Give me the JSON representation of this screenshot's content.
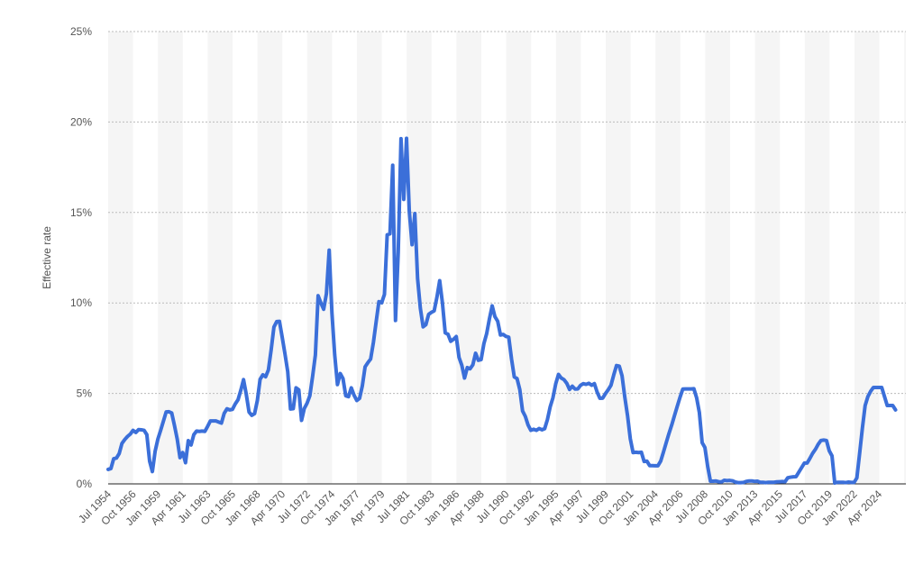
{
  "chart_data": {
    "type": "line",
    "y_axis_label": "Effective rate",
    "categories": [
      "Jul 1954",
      null,
      null,
      null,
      null,
      null,
      null,
      null,
      null,
      "Oct 1956",
      null,
      null,
      null,
      null,
      null,
      null,
      null,
      null,
      "Jan 1959",
      null,
      null,
      null,
      null,
      null,
      null,
      null,
      null,
      "Apr 1961",
      null,
      null,
      null,
      null,
      null,
      null,
      null,
      null,
      "Jul 1963",
      null,
      null,
      null,
      null,
      null,
      null,
      null,
      null,
      "Oct 1965",
      null,
      null,
      null,
      null,
      null,
      null,
      null,
      null,
      "Jan 1968",
      null,
      null,
      null,
      null,
      null,
      null,
      null,
      null,
      "Apr 1970",
      null,
      null,
      null,
      null,
      null,
      null,
      null,
      null,
      "Jul 1972",
      null,
      null,
      null,
      null,
      null,
      null,
      null,
      null,
      "Oct 1974",
      null,
      null,
      null,
      null,
      null,
      null,
      null,
      null,
      "Jan 1977",
      null,
      null,
      null,
      null,
      null,
      null,
      null,
      null,
      "Apr 1979",
      null,
      null,
      null,
      null,
      null,
      null,
      null,
      null,
      "Jul 1981",
      null,
      null,
      null,
      null,
      null,
      null,
      null,
      null,
      "Oct 1983",
      null,
      null,
      null,
      null,
      null,
      null,
      null,
      null,
      "Jan 1986",
      null,
      null,
      null,
      null,
      null,
      null,
      null,
      null,
      "Apr 1988",
      null,
      null,
      null,
      null,
      null,
      null,
      null,
      null,
      "Jul 1990",
      null,
      null,
      null,
      null,
      null,
      null,
      null,
      null,
      "Oct 1992",
      null,
      null,
      null,
      null,
      null,
      null,
      null,
      null,
      "Jan 1995",
      null,
      null,
      null,
      null,
      null,
      null,
      null,
      null,
      "Apr 1997",
      null,
      null,
      null,
      null,
      null,
      null,
      null,
      null,
      "Jul 1999",
      null,
      null,
      null,
      null,
      null,
      null,
      null,
      null,
      "Oct 2001",
      null,
      null,
      null,
      null,
      null,
      null,
      null,
      null,
      "Jan 2004",
      null,
      null,
      null,
      null,
      null,
      null,
      null,
      null,
      "Apr 2006",
      null,
      null,
      null,
      null,
      null,
      null,
      null,
      null,
      "Jul 2008",
      null,
      null,
      null,
      null,
      null,
      null,
      null,
      null,
      "Oct 2010",
      null,
      null,
      null,
      null,
      null,
      null,
      null,
      null,
      "Jan 2013",
      null,
      null,
      null,
      null,
      null,
      null,
      null,
      null,
      "Apr 2015",
      null,
      null,
      null,
      null,
      null,
      null,
      null,
      null,
      "Jul 2017",
      null,
      null,
      null,
      null,
      null,
      null,
      null,
      null,
      "Oct 2019",
      null,
      null,
      null,
      null,
      null,
      null,
      null,
      null,
      "Jan 2022",
      null,
      null,
      null,
      null,
      null,
      null,
      null,
      null,
      "Apr 2024",
      null,
      null,
      null,
      null,
      null,
      null
    ],
    "series": [
      {
        "color": "#3b6fd9",
        "values": [
          0.8,
          0.85,
          1.39,
          1.43,
          1.68,
          2.24,
          2.45,
          2.62,
          2.75,
          2.96,
          2.84,
          3.0,
          2.99,
          2.96,
          2.72,
          1.26,
          0.68,
          1.8,
          2.48,
          2.96,
          3.47,
          3.98,
          3.99,
          3.92,
          3.23,
          2.47,
          1.45,
          1.73,
          1.17,
          2.39,
          2.15,
          2.72,
          2.92,
          2.9,
          2.92,
          2.9,
          3.18,
          3.48,
          3.48,
          3.48,
          3.42,
          3.36,
          3.9,
          4.15,
          4.09,
          4.12,
          4.42,
          4.65,
          5.17,
          5.76,
          4.94,
          3.97,
          3.79,
          3.88,
          4.61,
          5.78,
          6.03,
          5.92,
          6.3,
          7.41,
          8.67,
          8.97,
          8.98,
          8.1,
          7.18,
          6.2,
          4.14,
          4.16,
          5.31,
          5.2,
          3.51,
          4.17,
          4.46,
          4.87,
          5.94,
          7.12,
          10.4,
          10.0,
          9.65,
          10.51,
          12.92,
          9.45,
          7.13,
          5.49,
          6.1,
          5.82,
          4.87,
          4.82,
          5.31,
          4.9,
          4.61,
          4.73,
          5.42,
          6.47,
          6.7,
          6.9,
          7.81,
          8.96,
          10.07,
          10.01,
          10.47,
          13.77,
          13.82,
          17.61,
          9.03,
          12.81,
          19.08,
          15.72,
          19.1,
          15.08,
          13.22,
          14.94,
          11.35,
          9.71,
          8.68,
          8.8,
          9.37,
          9.48,
          9.56,
          10.32,
          11.23,
          9.99,
          8.35,
          8.27,
          7.88,
          7.99,
          8.14,
          6.99,
          6.56,
          5.85,
          6.43,
          6.36,
          6.58,
          7.22,
          6.83,
          6.87,
          7.75,
          8.3,
          9.12,
          9.84,
          9.24,
          8.99,
          8.23,
          8.26,
          8.15,
          8.11,
          6.91,
          5.91,
          5.82,
          5.21,
          4.03,
          3.73,
          3.25,
          2.96,
          3.02,
          2.96,
          3.06,
          2.99,
          3.05,
          3.56,
          4.26,
          4.76,
          5.53,
          6.05,
          5.85,
          5.76,
          5.56,
          5.22,
          5.4,
          5.24,
          5.25,
          5.45,
          5.54,
          5.5,
          5.56,
          5.45,
          5.54,
          5.07,
          4.73,
          4.74,
          4.99,
          5.2,
          5.45,
          6.02,
          6.54,
          6.51,
          5.98,
          4.8,
          3.77,
          2.49,
          1.73,
          1.75,
          1.73,
          1.75,
          1.24,
          1.26,
          1.01,
          1.01,
          1.0,
          1.0,
          1.26,
          1.76,
          2.28,
          2.79,
          3.26,
          3.78,
          4.29,
          4.79,
          5.24,
          5.25,
          5.25,
          5.25,
          5.26,
          4.76,
          3.94,
          2.28,
          2.01,
          0.97,
          0.15,
          0.15,
          0.16,
          0.12,
          0.11,
          0.2,
          0.18,
          0.19,
          0.17,
          0.1,
          0.07,
          0.07,
          0.08,
          0.14,
          0.16,
          0.16,
          0.14,
          0.15,
          0.09,
          0.09,
          0.07,
          0.09,
          0.09,
          0.09,
          0.11,
          0.12,
          0.13,
          0.12,
          0.34,
          0.37,
          0.39,
          0.4,
          0.65,
          0.9,
          1.15,
          1.15,
          1.41,
          1.69,
          1.91,
          2.19,
          2.4,
          2.42,
          2.4,
          1.83,
          1.55,
          0.05,
          0.09,
          0.09,
          0.09,
          0.07,
          0.1,
          0.08,
          0.08,
          0.33,
          1.68,
          3.08,
          4.33,
          4.83,
          5.12,
          5.33,
          5.33,
          5.33,
          5.33,
          4.83,
          4.33,
          4.33,
          4.33,
          4.09
        ]
      }
    ],
    "ylim": [
      0,
      25
    ],
    "yticks": [
      {
        "value": 0,
        "label": "0%"
      },
      {
        "value": 5,
        "label": "5%"
      },
      {
        "value": 10,
        "label": "10%"
      },
      {
        "value": 15,
        "label": "15%"
      },
      {
        "value": 20,
        "label": "20%"
      },
      {
        "value": 25,
        "label": "25%"
      }
    ],
    "grid": true
  }
}
